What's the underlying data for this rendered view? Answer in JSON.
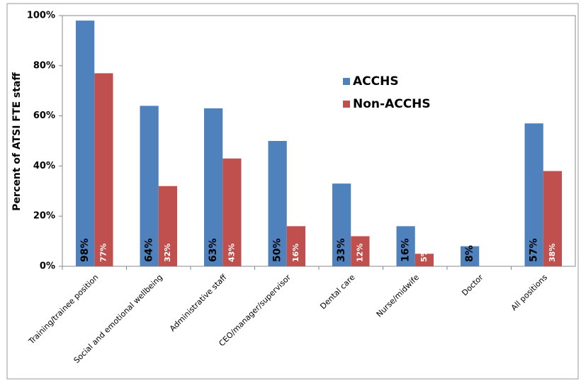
{
  "chart_data": {
    "type": "bar",
    "ylabel": "Percent of ATSI FTE staff",
    "categories": [
      "Training/trainee position",
      "Social and emotional wellbeing",
      "Administrative staff",
      "CEO/manager/supervisor",
      "Dental care",
      "Nurse/midwife",
      "Doctor",
      "All positions"
    ],
    "series": [
      {
        "name": "ACCHS",
        "color": "#4f81bd",
        "values": [
          98,
          64,
          63,
          50,
          33,
          16,
          8,
          57
        ],
        "value_labels": [
          "98%",
          "64%",
          "63%",
          "50%",
          "33%",
          "16%",
          "8%",
          "57%"
        ]
      },
      {
        "name": "Non-ACCHS",
        "color": "#c0504d",
        "values": [
          77,
          32,
          43,
          16,
          12,
          5,
          null,
          38
        ],
        "value_labels": [
          "77%",
          "32%",
          "43%",
          "16%",
          "12%",
          "5%",
          null,
          "38%"
        ]
      }
    ],
    "ylim": [
      0,
      100
    ],
    "yticks": [
      {
        "value": 0,
        "label": "0%"
      },
      {
        "value": 20,
        "label": "20%"
      },
      {
        "value": 40,
        "label": "40%"
      },
      {
        "value": 60,
        "label": "60%"
      },
      {
        "value": 80,
        "label": "80%"
      },
      {
        "value": 100,
        "label": "100%"
      }
    ],
    "legend": "upper-right"
  }
}
